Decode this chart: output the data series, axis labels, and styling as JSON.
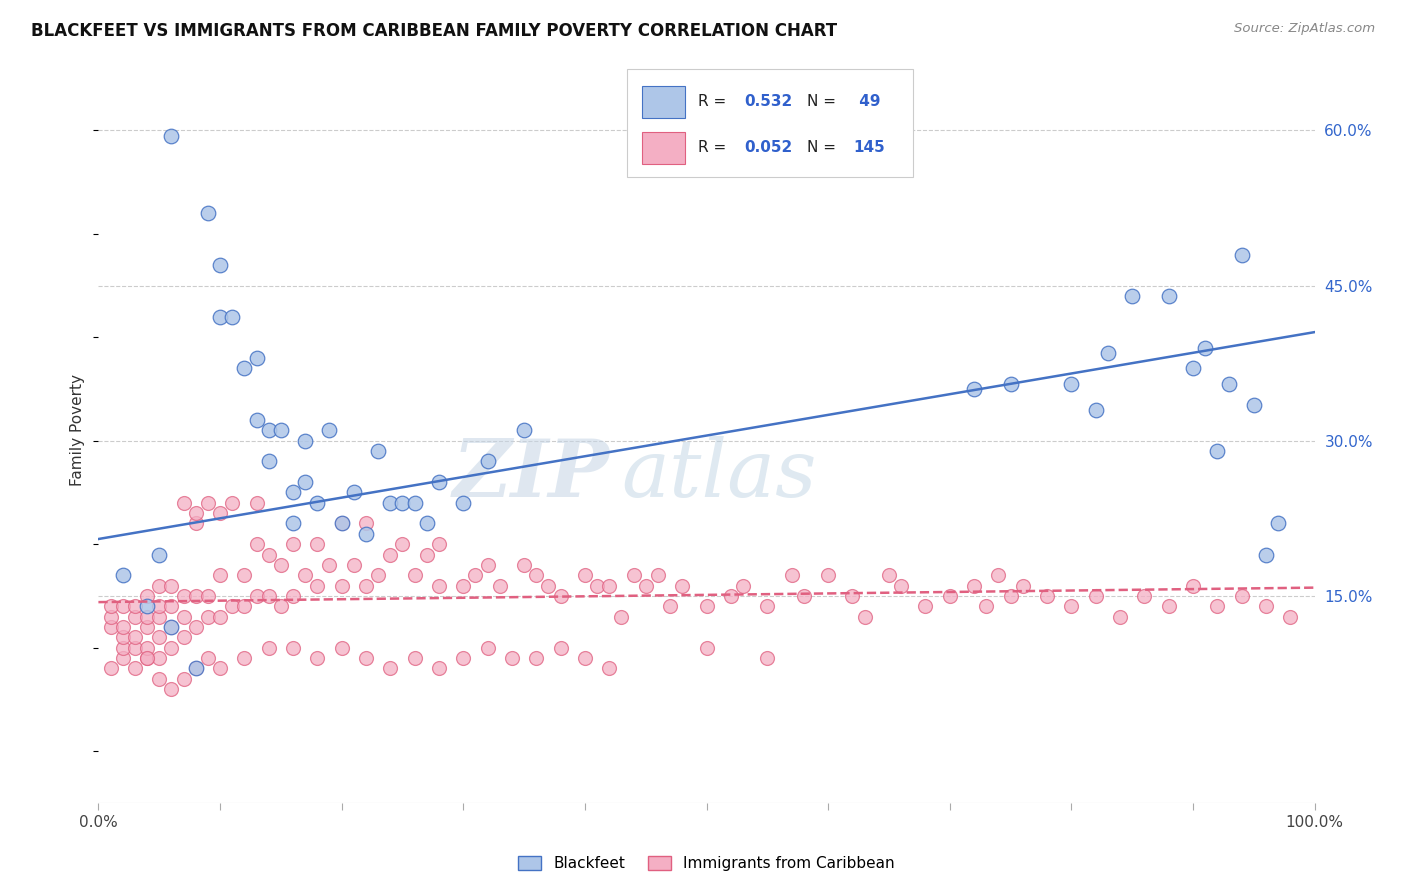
{
  "title": "BLACKFEET VS IMMIGRANTS FROM CARIBBEAN FAMILY POVERTY CORRELATION CHART",
  "source": "Source: ZipAtlas.com",
  "ylabel": "Family Poverty",
  "ytick_labels": [
    "15.0%",
    "30.0%",
    "45.0%",
    "60.0%"
  ],
  "ytick_values": [
    0.15,
    0.3,
    0.45,
    0.6
  ],
  "xlim": [
    0.0,
    1.0
  ],
  "ylim": [
    -0.05,
    0.67
  ],
  "blue_color": "#4472c4",
  "pink_color": "#e06080",
  "blue_face": "#aec6e8",
  "pink_face": "#f4afc4",
  "watermark_zip": "ZIP",
  "watermark_atlas": "atlas",
  "blue_trend_x": [
    0.0,
    1.0
  ],
  "blue_trend_y": [
    0.205,
    0.405
  ],
  "pink_trend_x": [
    0.0,
    1.0
  ],
  "pink_trend_y": [
    0.144,
    0.158
  ],
  "blue_x": [
    0.06,
    0.09,
    0.1,
    0.1,
    0.11,
    0.12,
    0.13,
    0.13,
    0.14,
    0.14,
    0.15,
    0.16,
    0.16,
    0.17,
    0.17,
    0.18,
    0.19,
    0.2,
    0.21,
    0.22,
    0.23,
    0.24,
    0.25,
    0.26,
    0.27,
    0.28,
    0.3,
    0.32,
    0.35,
    0.72,
    0.75,
    0.8,
    0.82,
    0.83,
    0.85,
    0.88,
    0.9,
    0.91,
    0.92,
    0.93,
    0.94,
    0.95,
    0.96,
    0.97,
    0.02,
    0.04,
    0.05,
    0.06,
    0.08
  ],
  "blue_y": [
    0.595,
    0.52,
    0.47,
    0.42,
    0.42,
    0.37,
    0.38,
    0.32,
    0.31,
    0.28,
    0.31,
    0.22,
    0.25,
    0.3,
    0.26,
    0.24,
    0.31,
    0.22,
    0.25,
    0.21,
    0.29,
    0.24,
    0.24,
    0.24,
    0.22,
    0.26,
    0.24,
    0.28,
    0.31,
    0.35,
    0.355,
    0.355,
    0.33,
    0.385,
    0.44,
    0.44,
    0.37,
    0.39,
    0.29,
    0.355,
    0.48,
    0.335,
    0.19,
    0.22,
    0.17,
    0.14,
    0.19,
    0.12,
    0.08
  ],
  "pink_x": [
    0.01,
    0.01,
    0.01,
    0.01,
    0.02,
    0.02,
    0.02,
    0.02,
    0.02,
    0.03,
    0.03,
    0.03,
    0.03,
    0.04,
    0.04,
    0.04,
    0.04,
    0.04,
    0.05,
    0.05,
    0.05,
    0.05,
    0.05,
    0.06,
    0.06,
    0.06,
    0.06,
    0.07,
    0.07,
    0.07,
    0.07,
    0.08,
    0.08,
    0.08,
    0.08,
    0.09,
    0.09,
    0.09,
    0.1,
    0.1,
    0.1,
    0.11,
    0.11,
    0.12,
    0.12,
    0.13,
    0.13,
    0.13,
    0.14,
    0.14,
    0.15,
    0.15,
    0.16,
    0.16,
    0.17,
    0.18,
    0.18,
    0.19,
    0.2,
    0.2,
    0.21,
    0.22,
    0.22,
    0.23,
    0.24,
    0.25,
    0.26,
    0.27,
    0.28,
    0.28,
    0.3,
    0.31,
    0.32,
    0.33,
    0.35,
    0.36,
    0.37,
    0.38,
    0.4,
    0.41,
    0.42,
    0.43,
    0.44,
    0.45,
    0.46,
    0.47,
    0.48,
    0.5,
    0.52,
    0.53,
    0.55,
    0.57,
    0.58,
    0.6,
    0.62,
    0.63,
    0.65,
    0.66,
    0.68,
    0.7,
    0.72,
    0.73,
    0.74,
    0.75,
    0.76,
    0.78,
    0.8,
    0.82,
    0.84,
    0.86,
    0.88,
    0.9,
    0.92,
    0.94,
    0.96,
    0.98,
    0.03,
    0.04,
    0.05,
    0.06,
    0.07,
    0.08,
    0.09,
    0.1,
    0.12,
    0.14,
    0.16,
    0.18,
    0.2,
    0.22,
    0.24,
    0.26,
    0.28,
    0.3,
    0.32,
    0.34,
    0.36,
    0.38,
    0.4,
    0.42,
    0.5,
    0.55
  ],
  "pink_y": [
    0.12,
    0.13,
    0.14,
    0.08,
    0.09,
    0.1,
    0.11,
    0.12,
    0.14,
    0.1,
    0.11,
    0.13,
    0.14,
    0.09,
    0.1,
    0.12,
    0.13,
    0.15,
    0.09,
    0.11,
    0.13,
    0.14,
    0.16,
    0.1,
    0.12,
    0.14,
    0.16,
    0.11,
    0.13,
    0.15,
    0.24,
    0.12,
    0.15,
    0.22,
    0.23,
    0.13,
    0.15,
    0.24,
    0.13,
    0.17,
    0.23,
    0.14,
    0.24,
    0.14,
    0.17,
    0.15,
    0.2,
    0.24,
    0.15,
    0.19,
    0.14,
    0.18,
    0.15,
    0.2,
    0.17,
    0.16,
    0.2,
    0.18,
    0.16,
    0.22,
    0.18,
    0.16,
    0.22,
    0.17,
    0.19,
    0.2,
    0.17,
    0.19,
    0.16,
    0.2,
    0.16,
    0.17,
    0.18,
    0.16,
    0.18,
    0.17,
    0.16,
    0.15,
    0.17,
    0.16,
    0.16,
    0.13,
    0.17,
    0.16,
    0.17,
    0.14,
    0.16,
    0.14,
    0.15,
    0.16,
    0.14,
    0.17,
    0.15,
    0.17,
    0.15,
    0.13,
    0.17,
    0.16,
    0.14,
    0.15,
    0.16,
    0.14,
    0.17,
    0.15,
    0.16,
    0.15,
    0.14,
    0.15,
    0.13,
    0.15,
    0.14,
    0.16,
    0.14,
    0.15,
    0.14,
    0.13,
    0.08,
    0.09,
    0.07,
    0.06,
    0.07,
    0.08,
    0.09,
    0.08,
    0.09,
    0.1,
    0.1,
    0.09,
    0.1,
    0.09,
    0.08,
    0.09,
    0.08,
    0.09,
    0.1,
    0.09,
    0.09,
    0.1,
    0.09,
    0.08,
    0.1,
    0.09
  ]
}
